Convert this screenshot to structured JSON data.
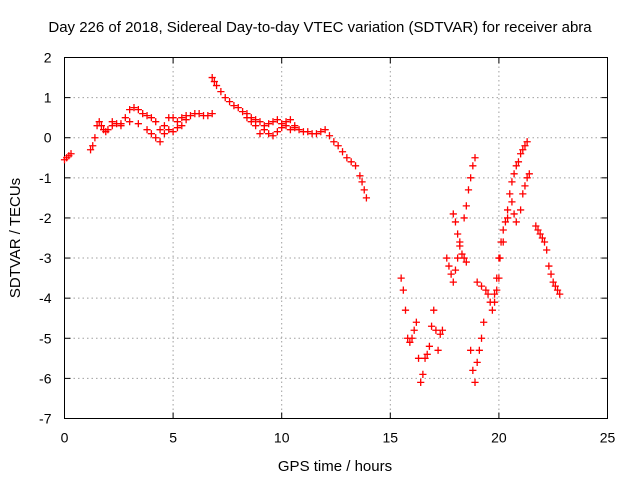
{
  "chart_data": {
    "type": "scatter",
    "title": "Day 226 of 2018, Sidereal Day-to-day VTEC variation (SDTVAR) for receiver abra",
    "xlabel": "GPS time / hours",
    "ylabel": "SDTVAR / TECUs",
    "xlim": [
      0,
      25
    ],
    "ylim": [
      -7,
      2
    ],
    "xticks": [
      0,
      5,
      10,
      15,
      20,
      25
    ],
    "yticks": [
      -7,
      -6,
      -5,
      -4,
      -3,
      -2,
      -1,
      0,
      1,
      2
    ],
    "xtick_labels": [
      "0",
      "5",
      "10",
      "15",
      "20",
      "25"
    ],
    "ytick_labels": [
      "-7",
      "-6",
      "-5",
      "-4",
      "-3",
      "-2",
      "-1",
      "0",
      "1",
      "2"
    ],
    "grid": true,
    "marker": "+",
    "color": "#ff0000",
    "series": [
      {
        "name": "abra",
        "points": [
          [
            0.0,
            -0.55
          ],
          [
            0.1,
            -0.5
          ],
          [
            0.2,
            -0.45
          ],
          [
            0.3,
            -0.4
          ],
          [
            1.2,
            -0.3
          ],
          [
            1.3,
            -0.2
          ],
          [
            1.4,
            0.0
          ],
          [
            1.5,
            0.3
          ],
          [
            1.6,
            0.4
          ],
          [
            1.7,
            0.3
          ],
          [
            1.8,
            0.2
          ],
          [
            1.9,
            0.15
          ],
          [
            2.0,
            0.2
          ],
          [
            2.2,
            0.3
          ],
          [
            2.4,
            0.35
          ],
          [
            2.6,
            0.3
          ],
          [
            2.8,
            0.5
          ],
          [
            3.0,
            0.7
          ],
          [
            3.2,
            0.75
          ],
          [
            3.4,
            0.7
          ],
          [
            3.6,
            0.6
          ],
          [
            3.8,
            0.55
          ],
          [
            4.0,
            0.5
          ],
          [
            4.2,
            0.4
          ],
          [
            4.4,
            0.2
          ],
          [
            4.6,
            0.3
          ],
          [
            4.8,
            0.5
          ],
          [
            5.0,
            0.5
          ],
          [
            5.2,
            0.4
          ],
          [
            5.4,
            0.3
          ],
          [
            5.6,
            0.45
          ],
          [
            5.8,
            0.55
          ],
          [
            6.0,
            0.6
          ],
          [
            6.2,
            0.6
          ],
          [
            6.4,
            0.55
          ],
          [
            6.6,
            0.55
          ],
          [
            6.8,
            0.6
          ],
          [
            2.2,
            0.4
          ],
          [
            2.6,
            0.35
          ],
          [
            3.0,
            0.4
          ],
          [
            3.4,
            0.35
          ],
          [
            3.8,
            0.2
          ],
          [
            4.0,
            0.1
          ],
          [
            4.2,
            0.0
          ],
          [
            4.4,
            -0.1
          ],
          [
            4.6,
            0.1
          ],
          [
            4.8,
            0.2
          ],
          [
            5.0,
            0.15
          ],
          [
            5.2,
            0.25
          ],
          [
            5.4,
            0.5
          ],
          [
            5.6,
            0.55
          ],
          [
            6.8,
            1.5
          ],
          [
            6.9,
            1.4
          ],
          [
            7.0,
            1.3
          ],
          [
            7.2,
            1.15
          ],
          [
            7.4,
            1.0
          ],
          [
            7.6,
            0.9
          ],
          [
            7.8,
            0.8
          ],
          [
            8.0,
            0.75
          ],
          [
            8.2,
            0.65
          ],
          [
            8.4,
            0.5
          ],
          [
            8.6,
            0.4
          ],
          [
            8.8,
            0.3
          ],
          [
            9.0,
            0.1
          ],
          [
            9.2,
            0.2
          ],
          [
            9.4,
            0.35
          ],
          [
            9.6,
            0.4
          ],
          [
            9.8,
            0.45
          ],
          [
            10.0,
            0.35
          ],
          [
            10.2,
            0.3
          ],
          [
            10.4,
            0.2
          ],
          [
            10.6,
            0.25
          ],
          [
            10.8,
            0.2
          ],
          [
            11.0,
            0.15
          ],
          [
            11.2,
            0.15
          ],
          [
            11.4,
            0.1
          ],
          [
            11.6,
            0.1
          ],
          [
            11.8,
            0.15
          ],
          [
            12.0,
            0.2
          ],
          [
            12.2,
            0.05
          ],
          [
            12.4,
            -0.1
          ],
          [
            12.6,
            -0.2
          ],
          [
            12.8,
            -0.35
          ],
          [
            13.0,
            -0.5
          ],
          [
            13.2,
            -0.6
          ],
          [
            13.4,
            -0.7
          ],
          [
            13.6,
            -0.95
          ],
          [
            13.7,
            -1.1
          ],
          [
            13.8,
            -1.3
          ],
          [
            13.9,
            -1.5
          ],
          [
            8.4,
            0.6
          ],
          [
            8.6,
            0.5
          ],
          [
            8.8,
            0.45
          ],
          [
            9.0,
            0.4
          ],
          [
            9.2,
            0.3
          ],
          [
            9.4,
            0.1
          ],
          [
            9.6,
            0.05
          ],
          [
            9.8,
            0.15
          ],
          [
            10.0,
            0.25
          ],
          [
            10.2,
            0.4
          ],
          [
            10.4,
            0.45
          ],
          [
            10.6,
            0.3
          ],
          [
            15.5,
            -3.5
          ],
          [
            15.6,
            -3.8
          ],
          [
            15.7,
            -4.3
          ],
          [
            15.8,
            -5.0
          ],
          [
            15.9,
            -5.1
          ],
          [
            16.0,
            -5.0
          ],
          [
            16.1,
            -4.8
          ],
          [
            16.2,
            -4.6
          ],
          [
            16.3,
            -5.5
          ],
          [
            16.4,
            -6.1
          ],
          [
            16.5,
            -5.9
          ],
          [
            16.6,
            -5.5
          ],
          [
            16.7,
            -5.4
          ],
          [
            16.8,
            -5.2
          ],
          [
            16.9,
            -4.7
          ],
          [
            17.0,
            -4.3
          ],
          [
            17.1,
            -4.8
          ],
          [
            17.2,
            -5.3
          ],
          [
            17.3,
            -4.9
          ],
          [
            17.4,
            -4.8
          ],
          [
            17.6,
            -3.0
          ],
          [
            17.7,
            -3.2
          ],
          [
            17.8,
            -3.4
          ],
          [
            17.9,
            -3.6
          ],
          [
            18.0,
            -3.3
          ],
          [
            18.1,
            -3.0
          ],
          [
            18.2,
            -2.6
          ],
          [
            17.9,
            -1.9
          ],
          [
            18.0,
            -2.1
          ],
          [
            18.1,
            -2.4
          ],
          [
            18.2,
            -2.7
          ],
          [
            18.3,
            -2.9
          ],
          [
            18.4,
            -3.0
          ],
          [
            18.5,
            -3.1
          ],
          [
            18.4,
            -2.0
          ],
          [
            18.5,
            -1.7
          ],
          [
            18.6,
            -1.3
          ],
          [
            18.7,
            -1.0
          ],
          [
            18.8,
            -0.7
          ],
          [
            18.9,
            -0.5
          ],
          [
            18.7,
            -5.3
          ],
          [
            18.8,
            -5.8
          ],
          [
            18.9,
            -6.1
          ],
          [
            19.0,
            -5.6
          ],
          [
            19.1,
            -5.3
          ],
          [
            19.2,
            -5.0
          ],
          [
            19.3,
            -4.6
          ],
          [
            19.0,
            -3.6
          ],
          [
            19.2,
            -3.7
          ],
          [
            19.4,
            -3.8
          ],
          [
            19.5,
            -3.9
          ],
          [
            19.6,
            -4.1
          ],
          [
            19.7,
            -4.3
          ],
          [
            19.8,
            -4.1
          ],
          [
            19.9,
            -3.8
          ],
          [
            20.0,
            -3.5
          ],
          [
            20.05,
            -3.0
          ],
          [
            20.1,
            -2.6
          ],
          [
            20.2,
            -2.3
          ],
          [
            20.3,
            -2.1
          ],
          [
            20.4,
            -1.8
          ],
          [
            20.5,
            -1.4
          ],
          [
            20.6,
            -1.1
          ],
          [
            20.7,
            -0.9
          ],
          [
            20.8,
            -0.7
          ],
          [
            20.9,
            -0.6
          ],
          [
            21.0,
            -0.4
          ],
          [
            21.1,
            -0.3
          ],
          [
            21.2,
            -0.2
          ],
          [
            21.3,
            -0.1
          ],
          [
            19.8,
            -3.9
          ],
          [
            19.9,
            -3.5
          ],
          [
            20.0,
            -3.0
          ],
          [
            20.2,
            -2.6
          ],
          [
            20.4,
            -2.0
          ],
          [
            20.6,
            -1.6
          ],
          [
            20.7,
            -1.9
          ],
          [
            20.8,
            -2.1
          ],
          [
            21.0,
            -1.8
          ],
          [
            21.1,
            -1.4
          ],
          [
            21.2,
            -1.2
          ],
          [
            21.3,
            -1.0
          ],
          [
            21.4,
            -0.9
          ],
          [
            21.7,
            -2.2
          ],
          [
            21.8,
            -2.3
          ],
          [
            21.9,
            -2.4
          ],
          [
            22.0,
            -2.5
          ],
          [
            22.1,
            -2.6
          ],
          [
            22.2,
            -2.8
          ],
          [
            22.3,
            -3.2
          ],
          [
            22.4,
            -3.4
          ],
          [
            22.5,
            -3.6
          ],
          [
            22.6,
            -3.7
          ],
          [
            22.7,
            -3.8
          ],
          [
            22.8,
            -3.9
          ]
        ]
      }
    ]
  }
}
